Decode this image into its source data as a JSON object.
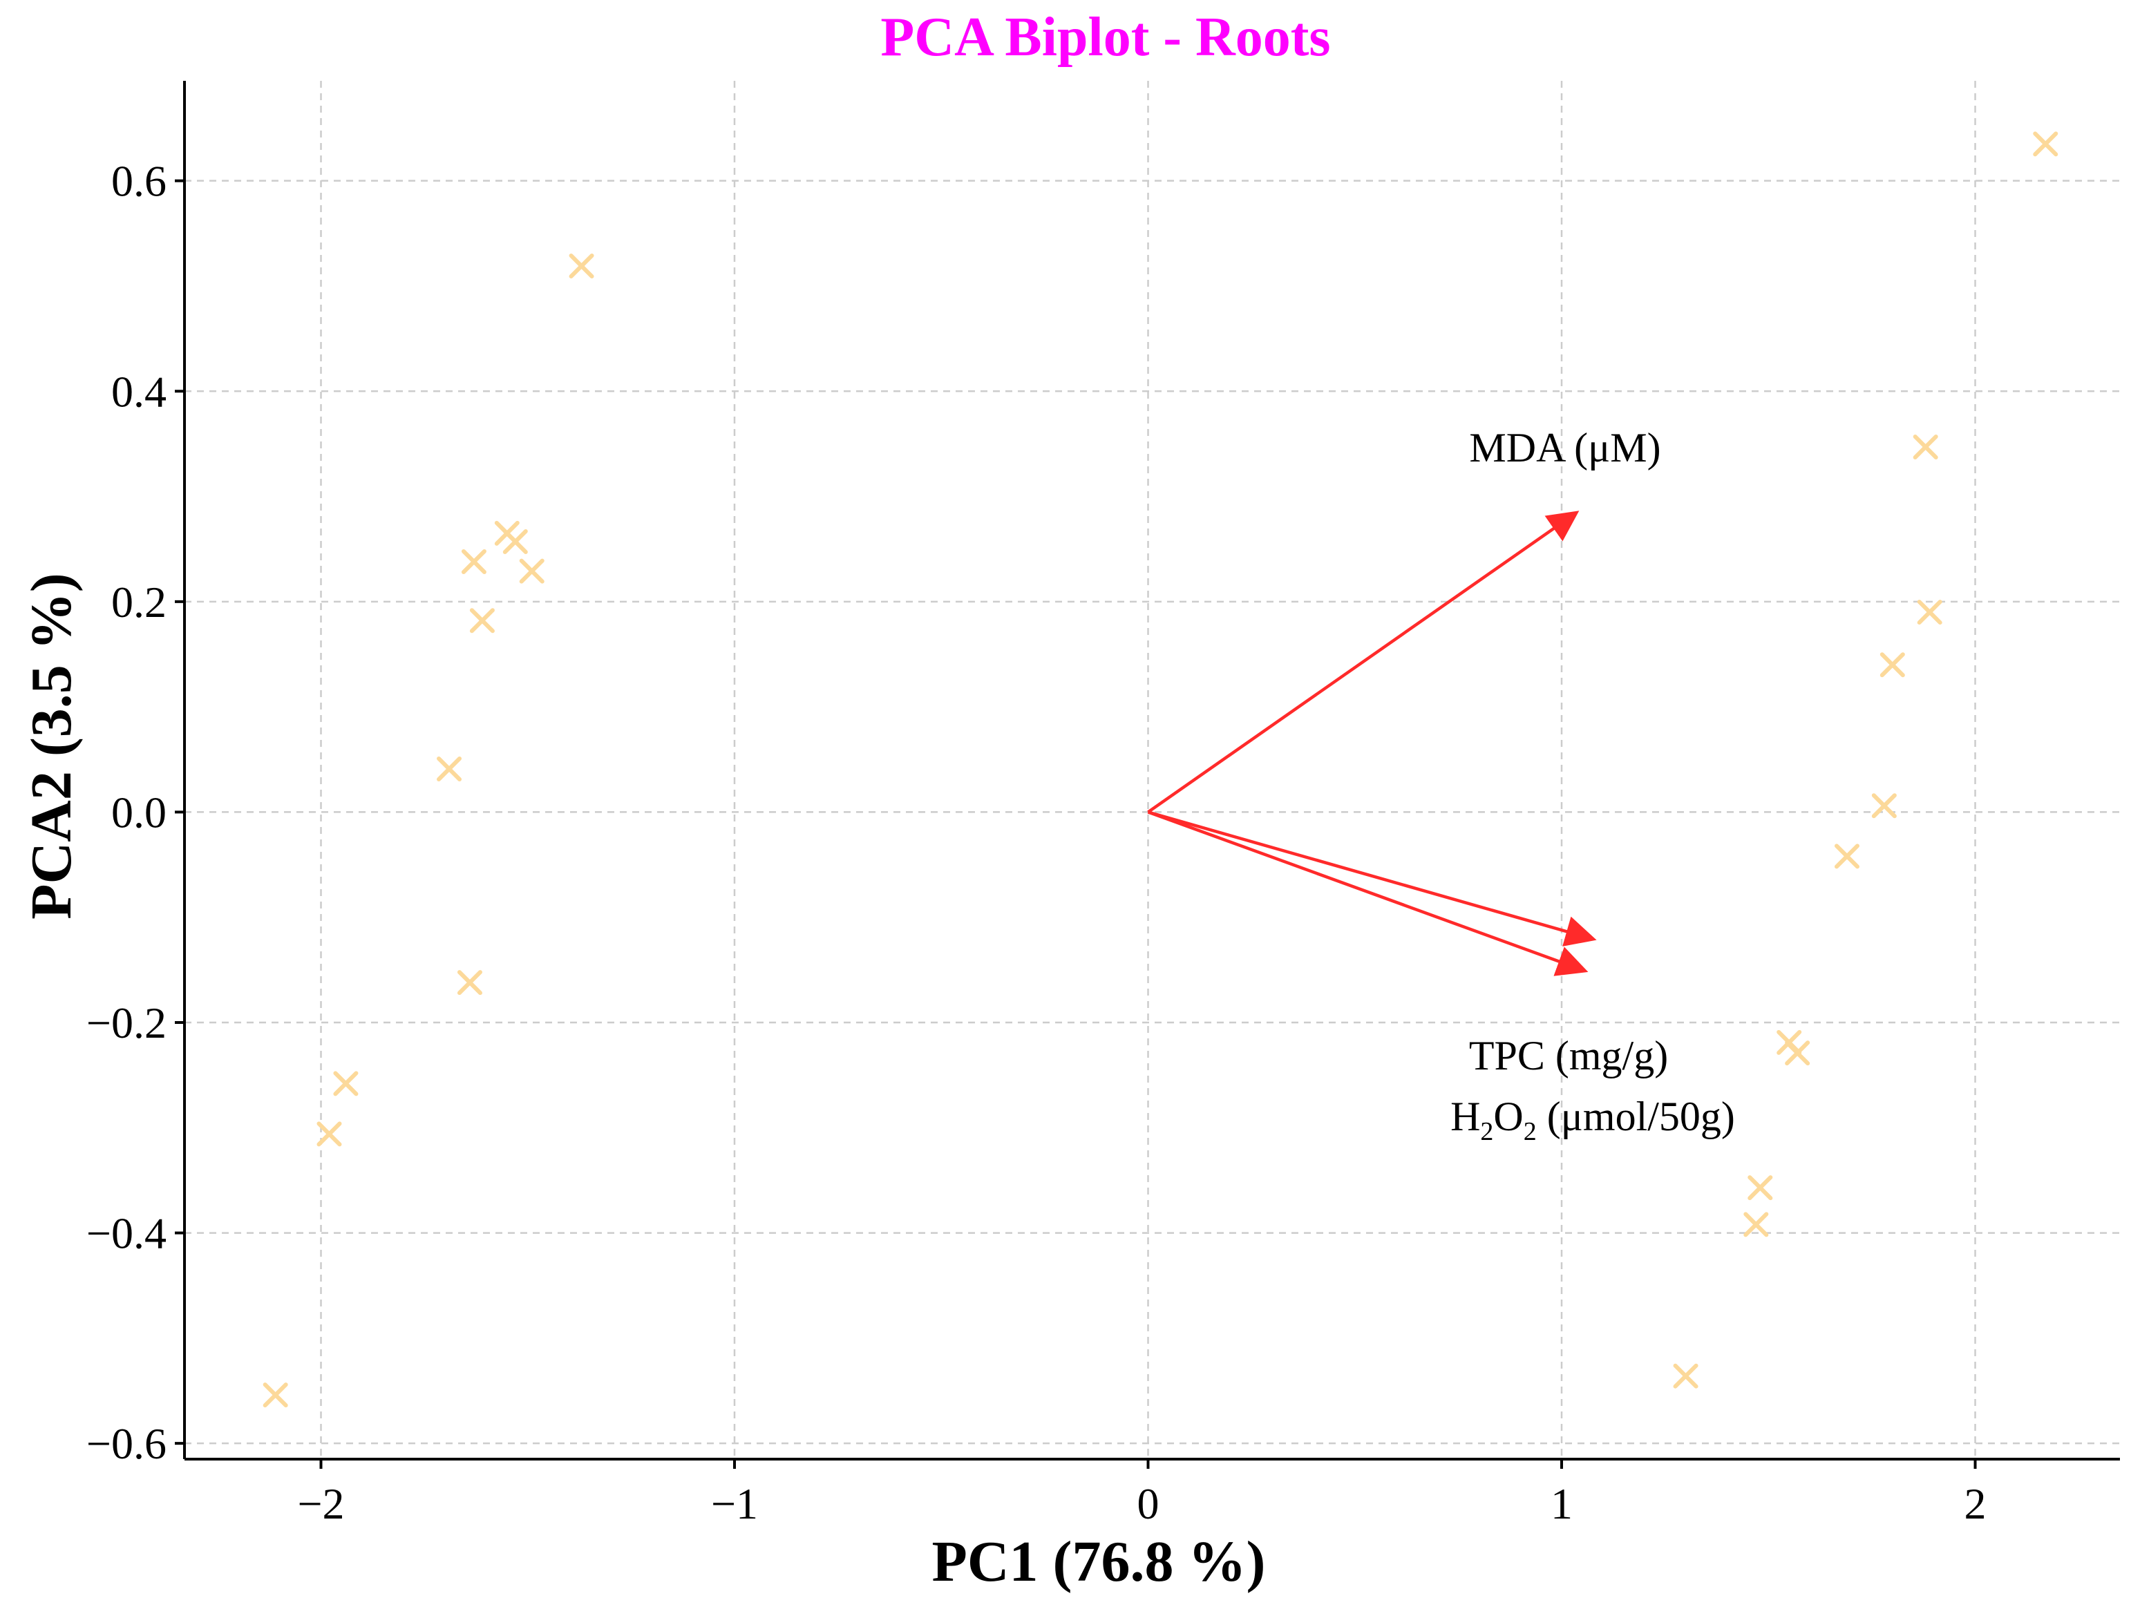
{
  "chart_data": {
    "type": "scatter",
    "title": "PCA Biplot - Roots",
    "title_color": "#ff00ff",
    "xlabel": "PC1 (76.8 %)",
    "ylabel": "PCA2 (3.5 %)",
    "xlim": [
      -2.33,
      2.35
    ],
    "ylim": [
      -0.615,
      0.695
    ],
    "xticks": [
      {
        "value": -2,
        "label": "−2"
      },
      {
        "value": -1,
        "label": "−1"
      },
      {
        "value": 0,
        "label": "0"
      },
      {
        "value": 1,
        "label": "1"
      },
      {
        "value": 2,
        "label": "2"
      }
    ],
    "yticks": [
      {
        "value": -0.6,
        "label": "−0.6"
      },
      {
        "value": -0.4,
        "label": "−0.4"
      },
      {
        "value": -0.2,
        "label": "−0.2"
      },
      {
        "value": 0.0,
        "label": "0.0"
      },
      {
        "value": 0.2,
        "label": "0.2"
      },
      {
        "value": 0.4,
        "label": "0.4"
      },
      {
        "value": 0.6,
        "label": "0.6"
      }
    ],
    "grid": true,
    "marker_color": "#fcd99a",
    "arrow_color": "#ff2a2a",
    "points": [
      {
        "x": 2.17,
        "y": 0.635
      },
      {
        "x": -1.37,
        "y": 0.519
      },
      {
        "x": 1.88,
        "y": 0.347
      },
      {
        "x": -1.55,
        "y": 0.265
      },
      {
        "x": -1.53,
        "y": 0.257
      },
      {
        "x": -1.63,
        "y": 0.238
      },
      {
        "x": -1.49,
        "y": 0.229
      },
      {
        "x": -1.61,
        "y": 0.182
      },
      {
        "x": 1.89,
        "y": 0.19
      },
      {
        "x": 1.8,
        "y": 0.14
      },
      {
        "x": -1.69,
        "y": 0.041
      },
      {
        "x": 1.78,
        "y": 0.006
      },
      {
        "x": 1.69,
        "y": -0.042
      },
      {
        "x": -1.64,
        "y": -0.162
      },
      {
        "x": 1.55,
        "y": -0.219
      },
      {
        "x": 1.57,
        "y": -0.229
      },
      {
        "x": -1.94,
        "y": -0.258
      },
      {
        "x": -1.98,
        "y": -0.306
      },
      {
        "x": 1.48,
        "y": -0.357
      },
      {
        "x": 1.47,
        "y": -0.392
      },
      {
        "x": 1.3,
        "y": -0.536
      },
      {
        "x": -2.11,
        "y": -0.554
      }
    ],
    "vectors": [
      {
        "name": "MDA (μM)",
        "x": 1.03,
        "y": 0.283
      },
      {
        "name": "TPC (mg/g)",
        "x": 1.07,
        "y": -0.12
      },
      {
        "name": "H2O2 (μmol/50g)",
        "x": 1.05,
        "y": -0.15
      }
    ],
    "annotations": {
      "mda": "MDA (μM)",
      "tpc": "TPC (mg/g)",
      "h": "H",
      "sub2": "2",
      "o": "O",
      "h2o2_rest": " (μmol/50g)"
    }
  }
}
